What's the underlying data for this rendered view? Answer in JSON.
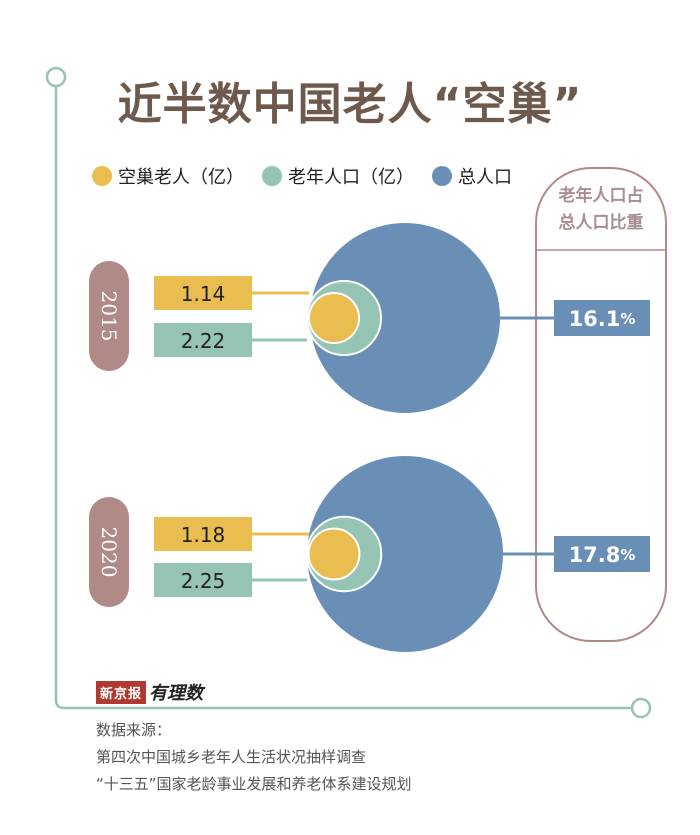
{
  "title": "近半数中国老人“空巢”",
  "legend": [
    {
      "label": "空巢老人（亿）",
      "color": "#e9bd4f"
    },
    {
      "label": "老年人口（亿）",
      "color": "#95c3b4"
    },
    {
      "label": "总人口",
      "color": "#6a8fb6"
    }
  ],
  "ratio_header": [
    "老年人口占",
    "总人口比重"
  ],
  "colors": {
    "empty_nest": "#e9bd4f",
    "elderly": "#95c3b4",
    "total": "#6a8fb6",
    "year_pill": "#b08a86",
    "frame": "#95c3b4",
    "ratio_frame": "#b08a86"
  },
  "chart_data": {
    "type": "bubble",
    "series": [
      {
        "year": "2015",
        "empty_nest": "1.14",
        "elderly": "2.22",
        "ratio": "16.1"
      },
      {
        "year": "2020",
        "empty_nest": "1.18",
        "elderly": "2.25",
        "ratio": "17.8"
      }
    ],
    "ratio_unit": "%"
  },
  "logo": {
    "brand": "新京报",
    "tag": "有理数"
  },
  "footer": {
    "source_label": "数据来源：",
    "source_lines": [
      "第四次中国城乡老年人生活状况抽样调查",
      "“十三五”国家老龄事业发展和养老体系建设规划"
    ]
  }
}
